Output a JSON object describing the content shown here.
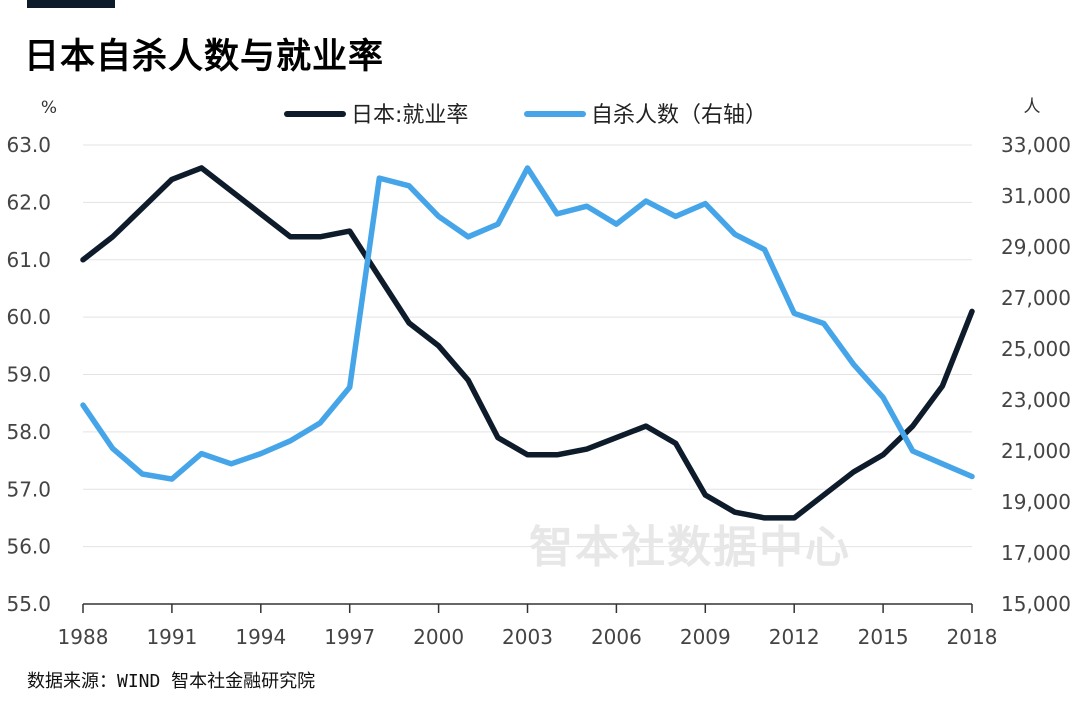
{
  "title": "日本自杀人数与就业率",
  "source": "数据来源：WIND 智本社金融研究院",
  "watermark": "智本社数据中心",
  "colors": {
    "employment": "#0d1b2a",
    "suicides": "#45a5e8",
    "grid": "#e3e3e3",
    "axis": "#333333"
  },
  "chart_data": {
    "type": "line",
    "x": [
      1988,
      1989,
      1990,
      1991,
      1992,
      1993,
      1994,
      1995,
      1996,
      1997,
      1998,
      1999,
      2000,
      2001,
      2002,
      2003,
      2004,
      2005,
      2006,
      2007,
      2008,
      2009,
      2010,
      2011,
      2012,
      2013,
      2014,
      2015,
      2016,
      2017,
      2018
    ],
    "x_ticks": [
      "1988",
      "1991",
      "1994",
      "1997",
      "2000",
      "2003",
      "2006",
      "2009",
      "2012",
      "2015",
      "2018"
    ],
    "y_left": {
      "unit": "%",
      "range": [
        55.0,
        63.0
      ],
      "ticks": [
        "55.0",
        "56.0",
        "57.0",
        "58.0",
        "59.0",
        "60.0",
        "61.0",
        "62.0",
        "63.0"
      ]
    },
    "y_right": {
      "unit": "人",
      "range": [
        15000,
        33000
      ],
      "ticks": [
        "15,000",
        "17,000",
        "19,000",
        "21,000",
        "23,000",
        "25,000",
        "27,000",
        "29,000",
        "31,000",
        "33,000"
      ]
    },
    "series": [
      {
        "name": "日本:就业率",
        "axis": "left",
        "values": [
          61.0,
          61.4,
          61.9,
          62.4,
          62.6,
          62.2,
          61.8,
          61.4,
          61.4,
          61.5,
          60.7,
          59.9,
          59.5,
          58.9,
          57.9,
          57.6,
          57.6,
          57.7,
          57.9,
          58.1,
          57.8,
          56.9,
          56.6,
          56.5,
          56.5,
          56.9,
          57.3,
          57.6,
          58.1,
          58.8,
          60.1
        ]
      },
      {
        "name": "自杀人数（右轴）",
        "axis": "right",
        "values": [
          22800,
          21100,
          20100,
          19900,
          20900,
          20500,
          20900,
          21400,
          22100,
          23500,
          31700,
          31400,
          30200,
          29400,
          29900,
          32100,
          30300,
          30600,
          29900,
          30800,
          30200,
          30700,
          29500,
          28900,
          26400,
          26000,
          24400,
          23100,
          21000,
          20500,
          20000
        ]
      }
    ],
    "grid": true,
    "legend": "top-center"
  }
}
